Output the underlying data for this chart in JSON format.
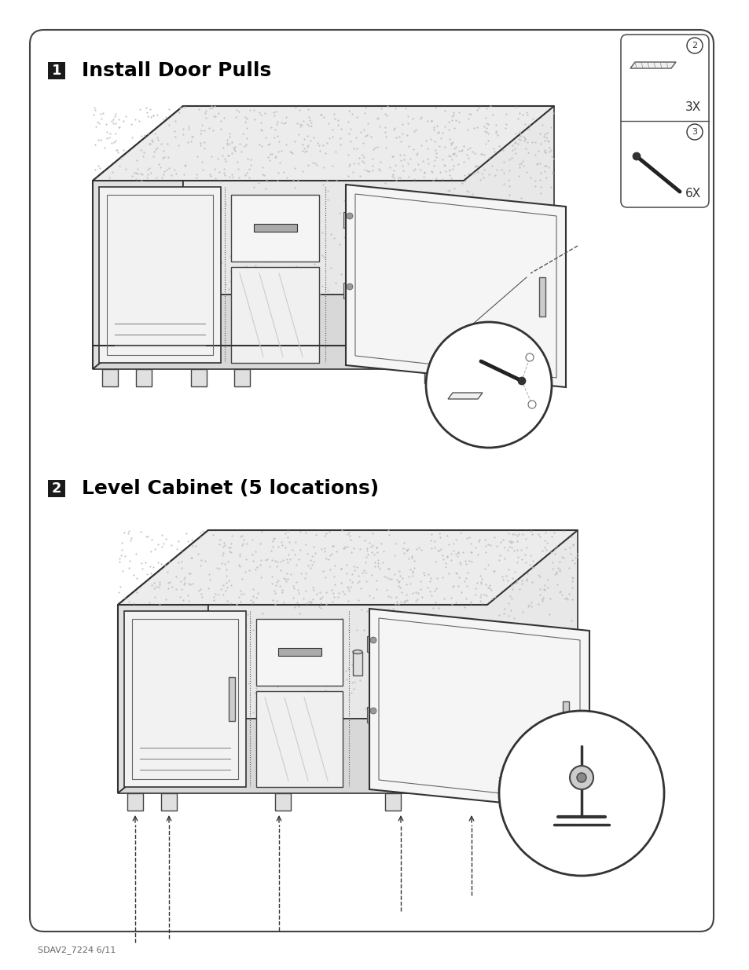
{
  "page_bg": "#ffffff",
  "border_color": "#444444",
  "step1_title": "Install Door Pulls",
  "step2_title": "Level Cabinet (5 locations)",
  "footer_text": "SDAV2_7224 6/11",
  "title_fontsize": 18,
  "footer_fontsize": 8,
  "parts_num1": "2",
  "parts_num2": "3",
  "parts_label1": "3X",
  "parts_label2": "6X"
}
